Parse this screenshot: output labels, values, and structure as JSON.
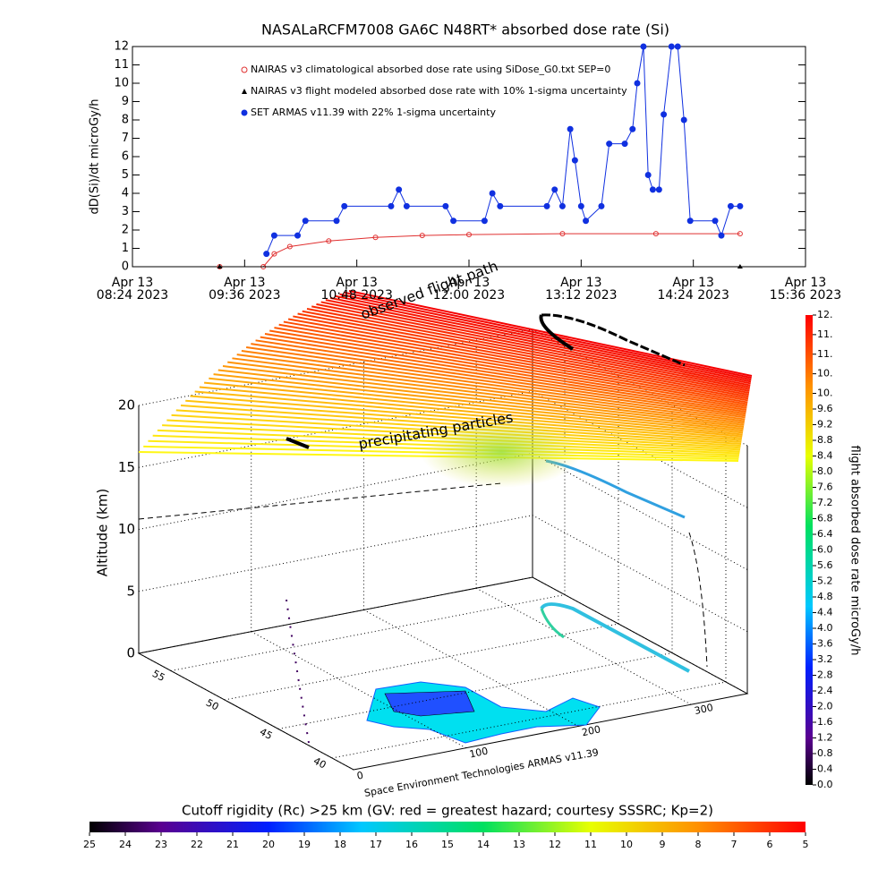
{
  "chart_data": [
    {
      "type": "line",
      "title": "NASALaRCFM7008  GA6C N48RT* absorbed dose rate (Si)",
      "y_label": "dD(Si)/dt microGy/h",
      "xlim": [
        "08:24",
        "15:36"
      ],
      "xticks": [
        {
          "value": "08:24",
          "label": "Apr 13\n08:24 2023"
        },
        {
          "value": "09:36",
          "label": "Apr 13\n09:36 2023"
        },
        {
          "value": "10:48",
          "label": "Apr 13\n10:48 2023"
        },
        {
          "value": "12:00",
          "label": "Apr 13\n12:00 2023"
        },
        {
          "value": "13:12",
          "label": "Apr 13\n13:12 2023"
        },
        {
          "value": "14:24",
          "label": "Apr 13\n14:24 2023"
        },
        {
          "value": "15:36",
          "label": "Apr 13\n15:36 2023"
        }
      ],
      "ylim": [
        0,
        12
      ],
      "yticks": [
        0,
        1,
        2,
        3,
        4,
        5,
        6,
        7,
        8,
        9,
        10,
        11,
        12
      ],
      "series": [
        {
          "name": "NAIRAS v3 climatological absorbed dose rate using SiDose_G0.txt SEP=0",
          "color": "#e03030",
          "marker": "circle",
          "x": [
            "09:20",
            "09:48",
            "09:55",
            "10:05",
            "10:30",
            "11:00",
            "11:30",
            "12:00",
            "13:00",
            "14:00",
            "14:54"
          ],
          "values": [
            0,
            0,
            0.7,
            1.1,
            1.4,
            1.6,
            1.7,
            1.75,
            1.8,
            1.8,
            1.8
          ]
        },
        {
          "name": "NAIRAS v3 flight modeled absorbed dose rate with 10% 1-sigma uncertainty",
          "color": "#000000",
          "marker": "triangle",
          "x": [
            "09:20",
            "14:54"
          ],
          "values": [
            0,
            0
          ]
        },
        {
          "name": "SET ARMAS v11.39 with 22% 1-sigma uncertainty",
          "color": "#1030e0",
          "marker": "dot",
          "x": [
            "09:50",
            "09:55",
            "10:10",
            "10:15",
            "10:35",
            "10:40",
            "11:10",
            "11:15",
            "11:20",
            "11:45",
            "11:50",
            "12:10",
            "12:15",
            "12:20",
            "12:50",
            "12:55",
            "13:00",
            "13:05",
            "13:08",
            "13:12",
            "13:15",
            "13:25",
            "13:30",
            "13:40",
            "13:45",
            "13:48",
            "13:52",
            "13:55",
            "13:58",
            "14:02",
            "14:05",
            "14:10",
            "14:14",
            "14:18",
            "14:22",
            "14:38",
            "14:42",
            "14:48",
            "14:54"
          ],
          "values": [
            0.7,
            1.7,
            1.7,
            2.5,
            2.5,
            3.3,
            3.3,
            4.2,
            3.3,
            3.3,
            2.5,
            2.5,
            4,
            3.3,
            3.3,
            4.2,
            3.3,
            7.5,
            5.8,
            3.3,
            2.5,
            3.3,
            6.7,
            6.7,
            7.5,
            10,
            12,
            5,
            4.2,
            4.2,
            8.3,
            12,
            12,
            8,
            2.5,
            2.5,
            1.7,
            3.3,
            3.3
          ]
        }
      ]
    },
    {
      "type": "colorbar",
      "label": "flight absorbed dose rate microGy/h",
      "ylim": [
        0,
        12
      ],
      "yticks": [
        {
          "value": 0,
          "label": "0.0"
        },
        {
          "value": 0.4,
          "label": "0.4"
        },
        {
          "value": 0.8,
          "label": "0.8"
        },
        {
          "value": 1.2,
          "label": "1.2"
        },
        {
          "value": 1.6,
          "label": "1.6"
        },
        {
          "value": 2,
          "label": "2.0"
        },
        {
          "value": 2.4,
          "label": "2.4"
        },
        {
          "value": 2.8,
          "label": "2.8"
        },
        {
          "value": 3.2,
          "label": "3.2"
        },
        {
          "value": 3.6,
          "label": "3.6"
        },
        {
          "value": 4,
          "label": "4.0"
        },
        {
          "value": 4.4,
          "label": "4.4"
        },
        {
          "value": 4.8,
          "label": "4.8"
        },
        {
          "value": 5.2,
          "label": "5.2"
        },
        {
          "value": 5.6,
          "label": "5.6"
        },
        {
          "value": 6,
          "label": "6.0"
        },
        {
          "value": 6.4,
          "label": "6.4"
        },
        {
          "value": 6.8,
          "label": "6.8"
        },
        {
          "value": 7.2,
          "label": "7.2"
        },
        {
          "value": 7.6,
          "label": "7.6"
        },
        {
          "value": 8,
          "label": "8.0"
        },
        {
          "value": 8.4,
          "label": "8.4"
        },
        {
          "value": 8.8,
          "label": "8.8"
        },
        {
          "value": 9.2,
          "label": "9.2"
        },
        {
          "value": 9.6,
          "label": "9.6"
        },
        {
          "value": 10,
          "label": "10."
        },
        {
          "value": 10.5,
          "label": "10."
        },
        {
          "value": 11,
          "label": "11."
        },
        {
          "value": 11.5,
          "label": "11."
        },
        {
          "value": 12,
          "label": "12."
        }
      ]
    },
    {
      "type": "colorbar",
      "title": "Cutoff rigidity (Rc) >25 km (GV: red = greatest hazard; courtesy SSSRC; Kp=2)",
      "xlim": [
        25,
        5
      ],
      "xticks": [
        25,
        24,
        23,
        22,
        21,
        20,
        19,
        18,
        17,
        16,
        15,
        14,
        13,
        12,
        11,
        10,
        9,
        8,
        7,
        6,
        5
      ]
    },
    {
      "type": "3d",
      "z_label": "Altitude (km)",
      "zlim": [
        0,
        20
      ],
      "zticks": [
        0,
        5,
        10,
        15,
        20
      ],
      "xlim": [
        0,
        350
      ],
      "xticks": [
        0,
        100,
        200,
        300
      ],
      "ylim": [
        38,
        58
      ],
      "yticks": [
        40,
        45,
        50,
        55
      ],
      "annotations": [
        "observed flight path",
        "precipitating particles"
      ],
      "footer": "Space Environment Technologies ARMAS v11.39"
    }
  ]
}
